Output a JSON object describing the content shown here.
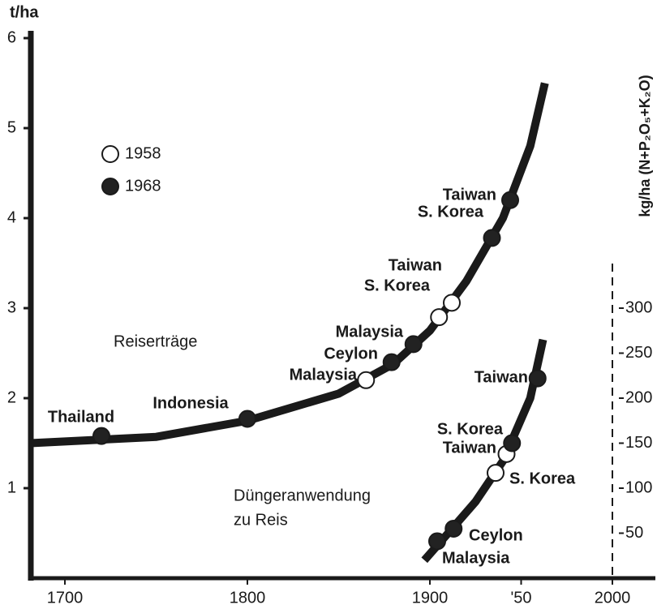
{
  "chart_data": {
    "type": "scatter",
    "ylabel": "t/ha",
    "y2label": "kg/ha (N+P₂O₅+K₂O)",
    "annotations": [
      "Reiserträge",
      "Düngeranwendung",
      "zu Reis"
    ],
    "xlim": [
      1680,
      2024
    ],
    "xticks": [
      1700,
      1800,
      1900,
      {
        "value": 1950,
        "label": "'50"
      },
      2000
    ],
    "ylim": [
      0,
      6
    ],
    "yticks": [
      1,
      2,
      3,
      4,
      5,
      6
    ],
    "y2lim": [
      0,
      600
    ],
    "y2ticks": [
      50,
      100,
      150,
      200,
      250,
      300
    ],
    "curves": [
      {
        "x": [
          1681,
          1750,
          1800,
          1850,
          1880,
          1900,
          1920,
          1940,
          1955,
          1963
        ],
        "values": [
          1.5,
          1.57,
          1.75,
          2.05,
          2.38,
          2.75,
          3.3,
          4.0,
          4.8,
          5.5
        ]
      },
      {
        "axis": "y2",
        "x": [
          1897,
          1910,
          1925,
          1940,
          1955,
          1962
        ],
        "values": [
          20,
          50,
          85,
          130,
          200,
          265
        ]
      }
    ],
    "series": [
      {
        "name": "1958",
        "color": "#ffffff",
        "x": [
          1865,
          1905,
          1912
        ],
        "values": [
          2.2,
          2.9,
          3.06
        ],
        "labels": [
          "Malaysia",
          "S. Korea",
          "Taiwan"
        ]
      },
      {
        "name": "1968",
        "color": "#222222",
        "x": [
          1720,
          1800,
          1879,
          1891,
          1934,
          1944
        ],
        "values": [
          1.58,
          1.77,
          2.4,
          2.6,
          3.78,
          4.2
        ],
        "labels": [
          "Thailand",
          "Indonesia",
          "Ceylon",
          "Malaysia",
          "S. Korea",
          "Taiwan"
        ]
      },
      {
        "name": "1958",
        "axis": "y2",
        "color": "#ffffff",
        "x": [
          1936,
          1942
        ],
        "values": [
          117,
          138
        ],
        "labels": [
          "S. Korea",
          "Taiwan"
        ]
      },
      {
        "name": "1968",
        "axis": "y2",
        "color": "#222222",
        "x": [
          1904,
          1913,
          1945,
          1959
        ],
        "values": [
          41,
          55,
          150,
          222
        ],
        "labels": [
          "Malaysia",
          "Ceylon",
          "S. Korea",
          "Taiwan"
        ]
      }
    ]
  }
}
